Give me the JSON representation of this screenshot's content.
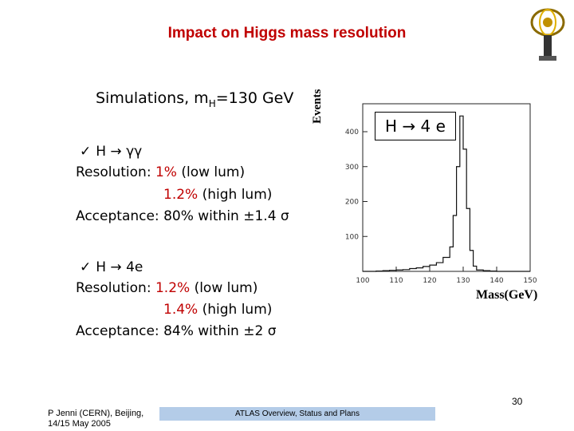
{
  "slide": {
    "title": "Impact on Higgs mass resolution",
    "subtitle_prefix": "Simulations, m",
    "subtitle_sub": "H",
    "subtitle_suffix": "=130 GeV"
  },
  "section1": {
    "check": "✓",
    "channel": "H → γγ",
    "resolution_label": "Resolution: ",
    "res_low_value": "1%",
    "res_low_text": " (low lum)",
    "res_high_value": "1.2%",
    "res_high_text": " (high lum)",
    "acceptance": "Acceptance: 80% within ±1.4 σ"
  },
  "section2": {
    "check": "✓",
    "channel": "H → 4e",
    "resolution_label": "Resolution: ",
    "res_low_value": "1.2%",
    "res_low_text": " (low lum)",
    "res_high_value": "1.4%",
    "res_high_text": " (high lum)",
    "acceptance": "Acceptance: 84% within ±2 σ"
  },
  "chart_data": {
    "type": "histogram",
    "title": "",
    "legend": "H → 4 e",
    "xlabel": "Mass(GeV)",
    "ylabel": "Events",
    "xlim": [
      100,
      150
    ],
    "ylim": [
      0,
      480
    ],
    "x_ticks": [
      "100",
      "110",
      "120",
      "130",
      "140",
      "150"
    ],
    "y_ticks": [
      "100",
      "200",
      "300",
      "400"
    ],
    "bins": [
      100,
      102,
      104,
      106,
      108,
      110,
      112,
      114,
      116,
      118,
      120,
      122,
      124,
      126,
      127,
      128,
      129,
      130,
      131,
      132,
      133,
      134,
      136,
      138,
      140,
      142,
      144,
      146,
      148
    ],
    "values": [
      0,
      0,
      1,
      2,
      3,
      4,
      5,
      8,
      10,
      14,
      18,
      25,
      40,
      70,
      160,
      300,
      445,
      350,
      180,
      60,
      15,
      4,
      2,
      1,
      0,
      0,
      0,
      0,
      0
    ]
  },
  "footer": {
    "author": "P Jenni (CERN), Beijing,",
    "date": "14/15 May 2005",
    "center": "ATLAS Overview, Status and Plans",
    "page": "30"
  }
}
